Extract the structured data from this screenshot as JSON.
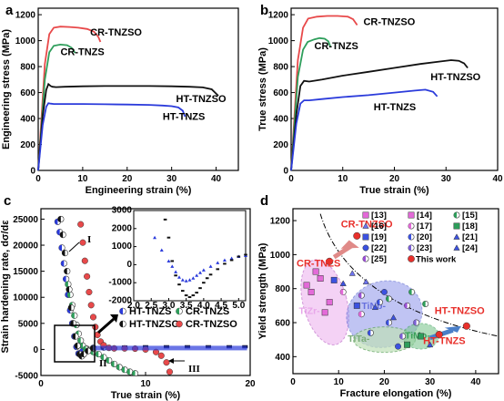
{
  "chart_data": [
    {
      "panel": "a",
      "type": "line",
      "xlabel": "Engineering strain (%)",
      "ylabel": "Engineering stress (MPa)",
      "xlim": [
        0,
        45
      ],
      "ylim": [
        0,
        1250
      ],
      "xticks": [
        "0",
        "10",
        "20",
        "30",
        "40"
      ],
      "yticks": [
        "0",
        "200",
        "400",
        "600",
        "800",
        "1000",
        "1200"
      ],
      "grid": false,
      "series": [
        {
          "name": "CR-TNZSO",
          "color": "#e8494a",
          "x": [
            0,
            1.5,
            2.5,
            3.5,
            5,
            7,
            9,
            11,
            12.5,
            13.5,
            14
          ],
          "y": [
            0,
            820,
            1050,
            1100,
            1108,
            1105,
            1100,
            1090,
            1070,
            1030,
            990
          ]
        },
        {
          "name": "CR-TNZS",
          "color": "#2e9e5b",
          "x": [
            0,
            1.5,
            2.5,
            3.5,
            5,
            6.5,
            7.5,
            8.3
          ],
          "y": [
            0,
            700,
            910,
            960,
            970,
            965,
            945,
            905
          ]
        },
        {
          "name": "HT-TNZSO",
          "color": "#111111",
          "x": [
            0,
            1,
            1.8,
            2.3,
            2.8,
            3.2,
            4,
            6,
            10,
            15,
            20,
            25,
            30,
            34,
            37,
            39,
            40.5
          ],
          "y": [
            0,
            420,
            620,
            665,
            650,
            645,
            642,
            645,
            648,
            650,
            650,
            650,
            648,
            645,
            640,
            625,
            575
          ]
        },
        {
          "name": "HT-TNZS",
          "color": "#2b3bdb",
          "x": [
            0,
            1,
            1.8,
            2.3,
            2.8,
            3.5,
            6,
            10,
            15,
            20,
            25,
            28,
            30,
            31.5,
            32.5,
            33
          ],
          "y": [
            0,
            350,
            490,
            518,
            515,
            512,
            512,
            512,
            510,
            508,
            505,
            500,
            495,
            485,
            460,
            415
          ]
        }
      ],
      "labels": [
        {
          "text": "CR-TNZSO",
          "color": "#e8494a"
        },
        {
          "text": "CR-TNZS",
          "color": "#2e9e5b"
        },
        {
          "text": "HT-TNZSO",
          "color": "#111111"
        },
        {
          "text": "HT-TNZS",
          "color": "#2b3bdb"
        }
      ]
    },
    {
      "panel": "b",
      "type": "line",
      "xlabel": "True strain (%)",
      "ylabel": "True stress (MPa)",
      "xlim": [
        0,
        40
      ],
      "ylim": [
        0,
        1250
      ],
      "xticks": [
        "0",
        "10",
        "20",
        "30",
        "40"
      ],
      "yticks": [
        "0",
        "200",
        "400",
        "600",
        "800",
        "1000",
        "1200"
      ],
      "grid": false,
      "series": [
        {
          "name": "CR-TNZSO",
          "color": "#e8494a",
          "x": [
            0,
            1.3,
            2.3,
            3.3,
            5,
            7,
            9,
            11,
            12,
            12.8
          ],
          "y": [
            0,
            850,
            1100,
            1170,
            1185,
            1190,
            1190,
            1185,
            1165,
            1120
          ]
        },
        {
          "name": "CR-TNZS",
          "color": "#2e9e5b",
          "x": [
            0,
            1.3,
            2.3,
            3.2,
            4.5,
            5.5,
            6.5,
            7.2,
            7.6
          ],
          "y": [
            0,
            720,
            930,
            990,
            1010,
            1020,
            1015,
            995,
            955
          ]
        },
        {
          "name": "HT-TNZSO",
          "color": "#111111",
          "x": [
            0,
            1,
            1.8,
            2.5,
            3.5,
            6,
            10,
            15,
            20,
            25,
            29,
            31,
            32.5,
            33.5,
            34.2
          ],
          "y": [
            0,
            430,
            650,
            690,
            685,
            700,
            730,
            760,
            790,
            820,
            840,
            850,
            845,
            825,
            790
          ]
        },
        {
          "name": "HT-TNZS",
          "color": "#2b3bdb",
          "x": [
            0,
            1,
            1.8,
            2.5,
            3.5,
            6,
            10,
            15,
            20,
            24,
            26,
            27.5,
            28.3
          ],
          "y": [
            0,
            360,
            515,
            540,
            540,
            550,
            565,
            580,
            600,
            615,
            622,
            605,
            570
          ]
        }
      ],
      "labels": [
        {
          "text": "CR-TNZSO",
          "color": "#e8494a"
        },
        {
          "text": "CR-TNZS",
          "color": "#2e9e5b"
        },
        {
          "text": "HT-TNZSO",
          "color": "#111111"
        },
        {
          "text": "HT-TNZS",
          "color": "#2b3bdb"
        }
      ]
    },
    {
      "panel": "c",
      "type": "scatter",
      "xlabel": "True strain (%)",
      "ylabel": "Strain hardening rate, dσ/dε",
      "xlim": [
        0,
        20
      ],
      "ylim": [
        -5000,
        27000
      ],
      "xticks": [
        "0",
        "10",
        "20"
      ],
      "yticks": [
        "-5000",
        "0",
        "5000",
        "10000",
        "15000",
        "20000",
        "25000"
      ],
      "grid": false,
      "legend_position": "middle-right",
      "series": [
        {
          "name": "HT-TNZS",
          "color": "#2b3bdb",
          "x": [
            1.6,
            1.8,
            2.0,
            2.2,
            2.4,
            2.6,
            2.8,
            3.0,
            3.2,
            3.4,
            3.6,
            3.8,
            4.0,
            4.4,
            5,
            6,
            8,
            10,
            12,
            14,
            16,
            18,
            19.5
          ],
          "y": [
            24500,
            22500,
            19500,
            16500,
            13500,
            10500,
            7500,
            5000,
            2500,
            500,
            -800,
            -700,
            -300,
            100,
            300,
            400,
            450,
            450,
            450,
            450,
            450,
            450,
            450
          ]
        },
        {
          "name": "CR-TNZS",
          "color": "#2e9e5b",
          "x": [
            2.6,
            2.8,
            3.0,
            3.2,
            3.4,
            3.6,
            3.8,
            4.0,
            4.3,
            4.6,
            5.0,
            5.5,
            6.0,
            6.5,
            7.0,
            7.5,
            8.0,
            8.5,
            9.0
          ],
          "y": [
            12500,
            10500,
            8500,
            6500,
            4700,
            3000,
            1700,
            700,
            100,
            -200,
            -500,
            -900,
            -1500,
            -2100,
            -2800,
            -3400,
            -3900,
            -4300,
            -4600
          ]
        },
        {
          "name": "HT-TNZSO",
          "color": "#111111",
          "x": [
            1.9,
            2.1,
            2.3,
            2.5,
            2.7,
            2.9,
            3.1,
            3.3,
            3.5,
            3.7,
            3.9,
            4.1,
            4.5,
            5,
            6,
            8,
            10,
            12,
            14,
            16,
            18,
            19.5
          ],
          "y": [
            25000,
            22000,
            18500,
            15000,
            11500,
            8000,
            5000,
            2500,
            700,
            -900,
            -1300,
            -900,
            -300,
            200,
            400,
            500,
            550,
            550,
            550,
            550,
            550,
            550
          ]
        },
        {
          "name": "CR-TNZSO",
          "color": "#e8494a",
          "x": [
            3.8,
            4.0,
            4.2,
            4.4,
            4.6,
            4.8,
            5.0,
            5.2,
            5.4,
            5.7,
            6.0,
            6.5,
            7,
            8,
            9,
            10,
            11,
            11.5,
            12,
            12.3
          ],
          "y": [
            24000,
            20500,
            17000,
            14000,
            11000,
            8500,
            6200,
            4300,
            2800,
            1500,
            800,
            300,
            200,
            200,
            150,
            0,
            -500,
            -1200,
            -2500,
            -4300
          ]
        }
      ],
      "annotations": [
        "I",
        "II",
        "III"
      ],
      "inset": {
        "xlim": [
          2.0,
          5.2
        ],
        "ylim": [
          -2000,
          3000
        ],
        "xticks": [
          "2.0",
          "2.5",
          "3.0",
          "3.5",
          "4.0",
          "4.5",
          "5.0"
        ],
        "yticks": [
          "-2000",
          "-1000",
          "0",
          "1000",
          "2000",
          "3000"
        ],
        "series": [
          {
            "name": "HT-TNZS",
            "color": "#2b3bdb",
            "x": [
              2.6,
              2.8,
              3.0,
              3.1,
              3.2,
              3.3,
              3.4,
              3.5,
              3.6,
              3.7,
              3.8,
              3.9,
              4.0,
              4.2,
              4.4,
              4.6,
              4.8,
              5.0,
              5.2
            ],
            "y": [
              1500,
              800,
              200,
              -100,
              -400,
              -700,
              -850,
              -900,
              -850,
              -750,
              -600,
              -450,
              -300,
              -100,
              100,
              250,
              350,
              450,
              500
            ]
          },
          {
            "name": "HT-TNZSO",
            "color": "#111111",
            "x": [
              2.9,
              3.0,
              3.1,
              3.2,
              3.3,
              3.4,
              3.5,
              3.6,
              3.7,
              3.8,
              3.9,
              4.0,
              4.1,
              4.2,
              4.4,
              4.6,
              4.8,
              5.0,
              5.2
            ],
            "y": [
              2500,
              1500,
              200,
              -600,
              -1100,
              -1450,
              -1700,
              -1800,
              -1700,
              -1550,
              -1300,
              -1000,
              -750,
              -550,
              -250,
              50,
              250,
              450,
              550
            ]
          }
        ]
      }
    },
    {
      "panel": "d",
      "type": "scatter",
      "xlabel": "Fracture elongation (%)",
      "ylabel": "Yield strength (MPa)",
      "xlim": [
        0,
        45
      ],
      "ylim": [
        300,
        1270
      ],
      "xticks": [
        "0",
        "10",
        "20",
        "30",
        "40"
      ],
      "yticks": [
        "400",
        "600",
        "800",
        "1000",
        "1200"
      ],
      "grid": false,
      "legend_position": "top-right",
      "legend": [
        "[13]",
        "[14]",
        "[15]",
        "[16]",
        "[17]",
        "[18]",
        "[19]",
        "[20]",
        "[21]",
        "[22]",
        "[23]",
        "[24]",
        "[25]",
        "This work"
      ],
      "regions": [
        {
          "text": "TiZr-",
          "color": "#e7a6e9"
        },
        {
          "text": "TiNb-",
          "color": "#6670dd"
        },
        {
          "text": "TiTa-",
          "color": "#9ec99a"
        },
        {
          "text": "TiMo-",
          "color": "#3aa05a"
        }
      ],
      "this_work": [
        {
          "name": "CR-TNZSO",
          "x": 14,
          "y": 1110
        },
        {
          "name": "CR-TNZS",
          "x": 8,
          "y": 960
        },
        {
          "name": "HT-TNZSO",
          "x": 38,
          "y": 580
        },
        {
          "name": "HT-TNZS",
          "x": 32,
          "y": 530
        }
      ],
      "points": [
        {
          "ref": 0,
          "x": 3,
          "y": 820
        },
        {
          "ref": 0,
          "x": 4,
          "y": 780
        },
        {
          "ref": 0,
          "x": 6,
          "y": 860
        },
        {
          "ref": 1,
          "x": 5,
          "y": 900
        },
        {
          "ref": 1,
          "x": 8,
          "y": 720
        },
        {
          "ref": 1,
          "x": 7,
          "y": 660
        },
        {
          "ref": 2,
          "x": 21,
          "y": 740
        },
        {
          "ref": 2,
          "x": 26,
          "y": 780
        },
        {
          "ref": 2,
          "x": 29,
          "y": 710
        },
        {
          "ref": 3,
          "x": 13,
          "y": 890
        },
        {
          "ref": 3,
          "x": 16,
          "y": 840
        },
        {
          "ref": 4,
          "x": 15,
          "y": 650
        },
        {
          "ref": 4,
          "x": 11,
          "y": 780
        },
        {
          "ref": 5,
          "x": 28,
          "y": 520
        },
        {
          "ref": 5,
          "x": 25,
          "y": 470
        },
        {
          "ref": 6,
          "x": 9,
          "y": 850
        },
        {
          "ref": 6,
          "x": 14,
          "y": 700
        },
        {
          "ref": 7,
          "x": 17,
          "y": 540
        },
        {
          "ref": 7,
          "x": 19,
          "y": 720
        },
        {
          "ref": 7,
          "x": 21,
          "y": 600
        },
        {
          "ref": 8,
          "x": 11,
          "y": 830
        },
        {
          "ref": 8,
          "x": 18,
          "y": 690
        },
        {
          "ref": 9,
          "x": 20,
          "y": 780
        },
        {
          "ref": 9,
          "x": 23,
          "y": 460
        },
        {
          "ref": 10,
          "x": 27,
          "y": 600
        },
        {
          "ref": 10,
          "x": 24,
          "y": 520
        },
        {
          "ref": 11,
          "x": 30,
          "y": 470
        },
        {
          "ref": 11,
          "x": 22,
          "y": 630
        },
        {
          "ref": 12,
          "x": 15,
          "y": 760
        },
        {
          "ref": 12,
          "x": 25,
          "y": 700
        }
      ]
    }
  ]
}
